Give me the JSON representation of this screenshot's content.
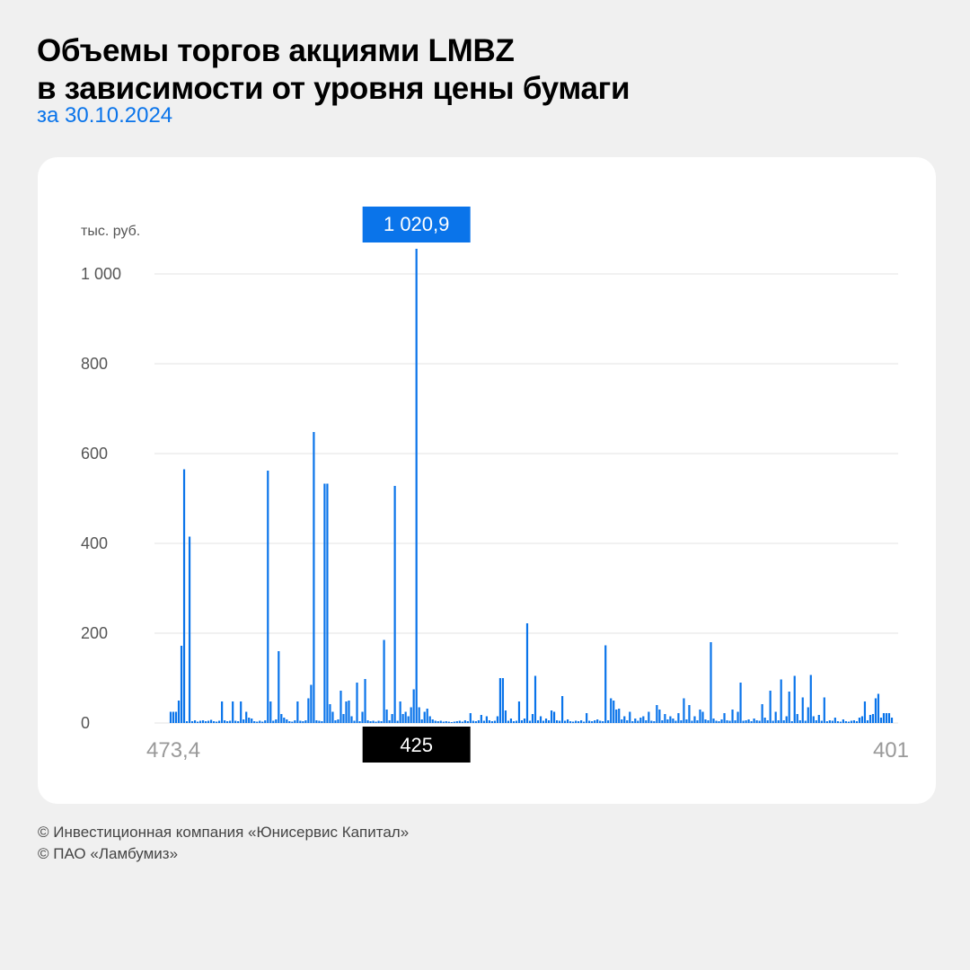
{
  "header": {
    "title_line1": "Объемы торгов акциями LMBZ",
    "title_line2": "в зависимости от уровня цены бумаги",
    "subtitle": "за 30.10.2024"
  },
  "footer": {
    "line1": "© Инвестиционная компания «Юнисервис Капитал»",
    "line2": "© ПАО «Ламбумиз»"
  },
  "colors": {
    "bar": "#0a74ea",
    "callout_top": "#0a74ea",
    "callout_bottom": "#000000",
    "grid": "#e3e3e3",
    "background": "#f0f0f0",
    "card": "#ffffff"
  },
  "chart_data": {
    "type": "bar",
    "title": "Объемы торгов акциями LMBZ в зависимости от уровня цены бумаги",
    "subtitle": "за 30.10.2024",
    "ylabel": "тыс. руб.",
    "xlabel": "",
    "ylim": [
      0,
      1000
    ],
    "yticks": [
      0,
      200,
      400,
      600,
      800,
      1000
    ],
    "ytick_labels": [
      "0",
      "200",
      "400",
      "600",
      "800",
      "1 000"
    ],
    "x_start_label": "473,4",
    "x_end_label": "401",
    "grid": true,
    "highlight": {
      "value_label": "1 020,9",
      "price_label": "425",
      "value": 1020.9,
      "index": 91
    },
    "values": [
      25,
      25,
      25,
      50,
      172,
      565,
      4,
      415,
      4,
      6,
      3,
      5,
      6,
      4,
      5,
      7,
      4,
      3,
      5,
      48,
      6,
      4,
      5,
      48,
      5,
      4,
      48,
      8,
      25,
      12,
      10,
      4,
      3,
      5,
      3,
      6,
      562,
      48,
      5,
      8,
      160,
      20,
      12,
      8,
      4,
      3,
      6,
      48,
      5,
      4,
      6,
      55,
      85,
      648,
      6,
      5,
      4,
      533,
      533,
      42,
      25,
      6,
      8,
      72,
      20,
      48,
      50,
      15,
      5,
      90,
      4,
      25,
      98,
      6,
      4,
      5,
      3,
      5,
      4,
      185,
      30,
      6,
      20,
      528,
      5,
      48,
      20,
      25,
      15,
      35,
      75,
      1020.9,
      35,
      8,
      25,
      32,
      15,
      8,
      5,
      4,
      5,
      3,
      4,
      3,
      2,
      3,
      4,
      5,
      3,
      6,
      4,
      22,
      5,
      4,
      6,
      18,
      5,
      15,
      6,
      4,
      5,
      15,
      100,
      100,
      28,
      5,
      10,
      4,
      5,
      48,
      6,
      10,
      222,
      5,
      20,
      105,
      6,
      15,
      5,
      10,
      6,
      28,
      25,
      6,
      5,
      60,
      5,
      8,
      4,
      3,
      5,
      4,
      6,
      3,
      22,
      5,
      4,
      6,
      8,
      5,
      4,
      173,
      6,
      55,
      50,
      30,
      32,
      8,
      15,
      6,
      25,
      4,
      10,
      5,
      12,
      15,
      6,
      25,
      5,
      4,
      40,
      30,
      6,
      20,
      8,
      15,
      10,
      5,
      22,
      6,
      55,
      8,
      40,
      5,
      15,
      6,
      30,
      25,
      8,
      6,
      180,
      10,
      5,
      4,
      8,
      22,
      6,
      5,
      30,
      6,
      25,
      90,
      5,
      6,
      8,
      4,
      10,
      6,
      5,
      42,
      12,
      6,
      72,
      5,
      25,
      6,
      97,
      6,
      15,
      70,
      4,
      105,
      20,
      6,
      57,
      5,
      35,
      107,
      15,
      6,
      18,
      5,
      57,
      4,
      6,
      5,
      12,
      4,
      3,
      8,
      4,
      3,
      5,
      6,
      4,
      12,
      15,
      48,
      6,
      18,
      20,
      55,
      65,
      12,
      22,
      22,
      22,
      12
    ]
  }
}
